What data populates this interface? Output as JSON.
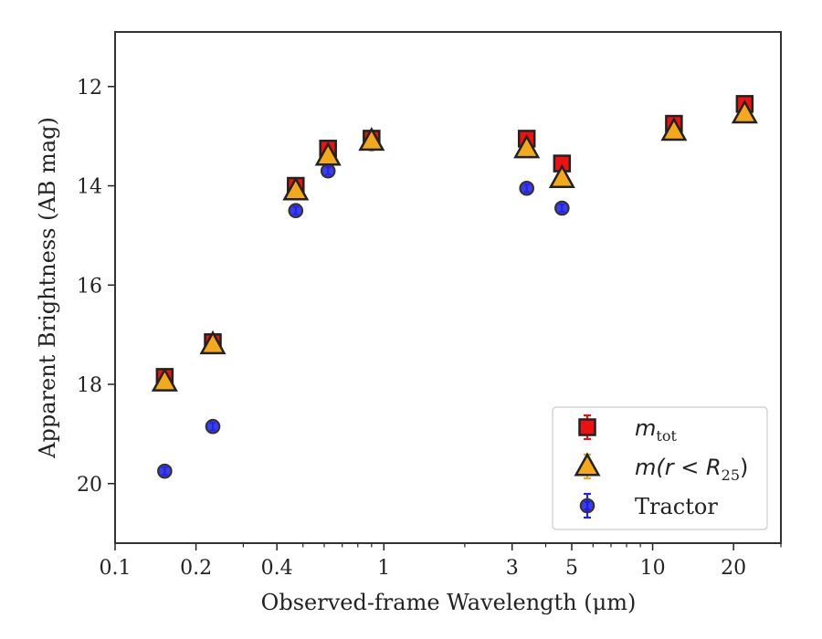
{
  "chart_data": {
    "type": "scatter",
    "title": "",
    "xlabel": "Observed-frame Wavelength (μm)",
    "ylabel": "Apparent Brightness (AB mag)",
    "xscale": "log",
    "xlim": [
      0.1,
      30
    ],
    "ylim": [
      21.2,
      10.9
    ],
    "y_inverted": true,
    "x_ticks": [
      {
        "value": 0.1,
        "label": "0.1"
      },
      {
        "value": 0.2,
        "label": "0.2"
      },
      {
        "value": 0.4,
        "label": "0.4"
      },
      {
        "value": 1,
        "label": "1"
      },
      {
        "value": 3,
        "label": "3"
      },
      {
        "value": 5,
        "label": "5"
      },
      {
        "value": 10,
        "label": "10"
      },
      {
        "value": 20,
        "label": "20"
      }
    ],
    "y_ticks": [
      {
        "value": 12,
        "label": "12"
      },
      {
        "value": 14,
        "label": "14"
      },
      {
        "value": 16,
        "label": "16"
      },
      {
        "value": 18,
        "label": "18"
      },
      {
        "value": 20,
        "label": "20"
      }
    ],
    "grid": false,
    "legend_position": "bottom-right",
    "series": [
      {
        "name": "m_tot",
        "legend": {
          "math": "m",
          "sub": "tot"
        },
        "marker": "square",
        "color": "#ee1111",
        "edge": "#222222",
        "errorbar_color": "#ee1111",
        "x": [
          0.153,
          0.231,
          0.47,
          0.62,
          0.9,
          3.4,
          4.6,
          12,
          22
        ],
        "y": [
          17.85,
          17.15,
          14.0,
          13.25,
          13.05,
          13.05,
          13.55,
          12.75,
          12.35
        ]
      },
      {
        "name": "m(r<R_25)",
        "legend": {
          "math": "m(r < R",
          "sub": "25",
          "tail": ")"
        },
        "marker": "triangle",
        "color": "#f4a81c",
        "edge": "#222222",
        "errorbar_color": "#f4a81c",
        "x": [
          0.153,
          0.231,
          0.47,
          0.62,
          0.9,
          3.4,
          4.6,
          12,
          22
        ],
        "y": [
          17.95,
          17.2,
          14.1,
          13.4,
          13.1,
          13.25,
          13.85,
          12.9,
          12.55
        ]
      },
      {
        "name": "Tractor",
        "legend": {
          "text": "Tractor"
        },
        "marker": "circle",
        "color": "#1a1aee",
        "edge": "#333333",
        "errorbar_color": "#2222ee",
        "x": [
          0.153,
          0.231,
          0.47,
          0.62,
          0.9,
          3.4,
          4.6,
          12,
          22
        ],
        "y": [
          19.75,
          18.85,
          14.5,
          13.7,
          13.15,
          14.05,
          14.45,
          12.9,
          12.45
        ]
      }
    ]
  }
}
